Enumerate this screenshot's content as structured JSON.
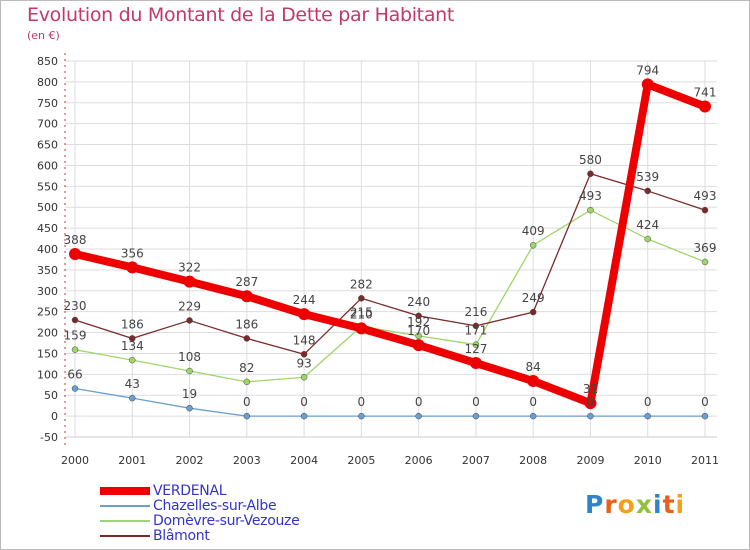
{
  "title": "Evolution du Montant de la Dette par Habitant",
  "unit": "(en €)",
  "brand": {
    "letters": [
      "P",
      "r",
      "o",
      "x",
      "i",
      "t",
      "i"
    ],
    "colors": [
      "#2f84c8",
      "#e8601c",
      "#f2a01a",
      "#8fc23d",
      "#2f84c8",
      "#e8601c",
      "#f2a01a"
    ]
  },
  "chart_data": {
    "type": "line",
    "title": "Evolution du Montant de la Dette par Habitant",
    "subtitle": "(en €)",
    "x": [
      "2000",
      "2001",
      "2002",
      "2003",
      "2004",
      "2005",
      "2006",
      "2007",
      "2008",
      "2009",
      "2010",
      "2011"
    ],
    "ylim": [
      -50,
      850
    ],
    "yticks": [
      -50,
      0,
      50,
      100,
      150,
      200,
      250,
      300,
      350,
      400,
      450,
      500,
      550,
      600,
      650,
      700,
      750,
      800,
      850
    ],
    "grid": true,
    "legend_position": "bottom-left",
    "series": [
      {
        "name": "VERDENAL",
        "color": "#ee0000",
        "values": [
          388,
          356,
          322,
          287,
          244,
          210,
          170,
          127,
          84,
          31,
          794,
          741
        ]
      },
      {
        "name": "Chazelles-sur-Albe",
        "color": "#6b9fd0",
        "values": [
          66,
          43,
          19,
          0,
          0,
          0,
          0,
          0,
          0,
          0,
          0,
          0
        ]
      },
      {
        "name": "Domèvre-sur-Vezouze",
        "color": "#9ed66a",
        "values": [
          159,
          134,
          108,
          82,
          93,
          215,
          192,
          171,
          409,
          493,
          424,
          369
        ]
      },
      {
        "name": "Blâmont",
        "color": "#7a2a2a",
        "values": [
          230,
          186,
          229,
          186,
          148,
          282,
          240,
          216,
          249,
          580,
          539,
          493
        ]
      }
    ],
    "data_labels": [
      [
        "388",
        "356",
        "322",
        "287",
        "244",
        "210",
        "170",
        "127",
        "84",
        "31",
        "794",
        "741"
      ],
      [
        "66",
        "43",
        "19",
        "0",
        "0",
        "0",
        "0",
        "0",
        "0",
        "0",
        "0",
        "0"
      ],
      [
        "159",
        "134",
        "108",
        "82",
        "93",
        "215",
        "192",
        "171",
        "409",
        "493",
        "424",
        "369"
      ],
      [
        "230",
        "186",
        "229",
        "186",
        "148",
        "282",
        "240",
        "216",
        "249",
        "580",
        "539",
        "493"
      ]
    ]
  }
}
